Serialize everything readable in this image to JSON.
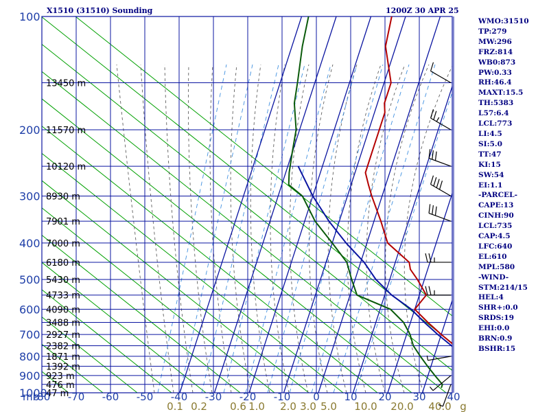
{
  "header": {
    "station": "X1510 (31510) Sounding",
    "time": "1200Z 30 APR 25"
  },
  "indices": [
    "WMO:31510",
    "TP:279",
    "MW:296",
    "FRZ:814",
    "WB0:873",
    "PW:0.33",
    "RH:46.4",
    "MAXT:15.5",
    "TH:5383",
    "L57:6.4",
    "LCL:773",
    "LI:4.5",
    "SI:5.0",
    "TT:47",
    "KI:15",
    "SW:54",
    "EI:1.1",
    "-PARCEL-",
    "CAPE:13",
    "CINH:90",
    "LCL:735",
    "CAP:4.5",
    "LFC:640",
    "EL:610",
    "MPL:580",
    "-WIND-",
    "STM:214/15",
    "HEL:4",
    "SHR+:0.0",
    "SRDS:19",
    "EHI:0.0",
    "BRN:0.9",
    "BSHR:15"
  ],
  "chart_data": {
    "type": "line",
    "diagram": "skew-T log-P",
    "pressure_unit": "mb",
    "pressure_ticks": [
      100,
      200,
      300,
      400,
      500,
      600,
      700,
      800,
      900,
      1000
    ],
    "pressure_range": [
      100,
      1000
    ],
    "pressure_scale": "log",
    "temperature_ticks": [
      -80,
      -70,
      -60,
      -50,
      -40,
      -30,
      -20,
      -10,
      0,
      10,
      20,
      30,
      40
    ],
    "temperature_tick_labels": [
      "-80",
      "-70",
      "-60",
      "-50",
      "-40",
      "-30",
      "-20",
      "-10",
      "0",
      "10",
      "20",
      "30",
      "40"
    ],
    "mixing_ratio_labels": [
      "0.1",
      "0.2",
      "0.6",
      "1.0",
      "2.0",
      "3.0",
      "5.0",
      "10.0",
      "20.0",
      "40.0",
      "g"
    ],
    "height_labels": [
      {
        "p": 150,
        "label": "13450 m"
      },
      {
        "p": 200,
        "label": "11570 m"
      },
      {
        "p": 250,
        "label": "10120 m"
      },
      {
        "p": 300,
        "label": "8930 m"
      },
      {
        "p": 350,
        "label": "7901 m"
      },
      {
        "p": 400,
        "label": "7000 m"
      },
      {
        "p": 450,
        "label": "6180 m"
      },
      {
        "p": 500,
        "label": "5430 m"
      },
      {
        "p": 550,
        "label": "4733 m"
      },
      {
        "p": 600,
        "label": "4090 m"
      },
      {
        "p": 650,
        "label": "3488 m"
      },
      {
        "p": 700,
        "label": "2927 m"
      },
      {
        "p": 750,
        "label": "2382 m"
      },
      {
        "p": 800,
        "label": "1871 m"
      },
      {
        "p": 850,
        "label": "1392 m"
      },
      {
        "p": 900,
        "label": "923 m"
      },
      {
        "p": 950,
        "label": "476 m"
      },
      {
        "p": 1000,
        "label": "47 m"
      }
    ],
    "series": [
      {
        "role": "temperature",
        "color": "#b40000",
        "points": [
          [
            100,
            -54
          ],
          [
            120,
            -53
          ],
          [
            150,
            -48
          ],
          [
            170,
            -48
          ],
          [
            180,
            -47
          ],
          [
            200,
            -47
          ],
          [
            230,
            -47
          ],
          [
            260,
            -47
          ],
          [
            280,
            -45
          ],
          [
            300,
            -43
          ],
          [
            350,
            -38
          ],
          [
            400,
            -34
          ],
          [
            450,
            -26
          ],
          [
            470,
            -25
          ],
          [
            500,
            -22
          ],
          [
            550,
            -18
          ],
          [
            600,
            -20
          ],
          [
            650,
            -15
          ],
          [
            700,
            -10
          ],
          [
            750,
            -5
          ],
          [
            800,
            0
          ],
          [
            850,
            5
          ],
          [
            900,
            9
          ],
          [
            950,
            12
          ],
          [
            960,
            13
          ]
        ]
      },
      {
        "role": "dewpoint",
        "color": "#0a5a0a",
        "points": [
          [
            100,
            -78
          ],
          [
            120,
            -77
          ],
          [
            150,
            -75
          ],
          [
            170,
            -74
          ],
          [
            200,
            -71
          ],
          [
            230,
            -70
          ],
          [
            260,
            -69
          ],
          [
            280,
            -68
          ],
          [
            300,
            -63
          ],
          [
            350,
            -57
          ],
          [
            400,
            -50
          ],
          [
            450,
            -44
          ],
          [
            500,
            -41
          ],
          [
            550,
            -38
          ],
          [
            600,
            -27
          ],
          [
            650,
            -22
          ],
          [
            700,
            -19
          ],
          [
            750,
            -17
          ],
          [
            800,
            -14
          ],
          [
            850,
            -11
          ],
          [
            900,
            -8
          ],
          [
            950,
            -5
          ],
          [
            970,
            -5
          ]
        ]
      },
      {
        "role": "parcel",
        "color": "#0a14a0",
        "points": [
          [
            250,
            -67
          ],
          [
            300,
            -60
          ],
          [
            350,
            -53
          ],
          [
            400,
            -46
          ],
          [
            450,
            -39
          ],
          [
            500,
            -34
          ],
          [
            550,
            -28
          ],
          [
            600,
            -21
          ],
          [
            650,
            -16
          ],
          [
            700,
            -11
          ],
          [
            750,
            -6
          ],
          [
            800,
            -1
          ],
          [
            850,
            4
          ],
          [
            900,
            8
          ],
          [
            950,
            12
          ],
          [
            970,
            14
          ]
        ]
      }
    ],
    "wind_barbs": [
      {
        "p": 150,
        "dir": 300,
        "kt": 10
      },
      {
        "p": 200,
        "dir": 300,
        "kt": 25
      },
      {
        "p": 250,
        "dir": 290,
        "kt": 30
      },
      {
        "p": 300,
        "dir": 300,
        "kt": 40
      },
      {
        "p": 350,
        "dir": 290,
        "kt": 30
      },
      {
        "p": 450,
        "dir": 270,
        "kt": 25
      },
      {
        "p": 550,
        "dir": 270,
        "kt": 25
      },
      {
        "p": 800,
        "dir": 260,
        "kt": 5
      },
      {
        "p": 900,
        "dir": 230,
        "kt": 5
      },
      {
        "p": 950,
        "dir": 200,
        "kt": 5
      }
    ],
    "colors": {
      "grid": "#0a14a0",
      "isotherm": "#0a14a0",
      "dry_adiabat": "#00a000",
      "moist_adiabat": "#606060",
      "mixing_ratio": "#4090e0",
      "axis_text": "#1f3fa8",
      "mixing_text": "#8a7a30"
    }
  }
}
